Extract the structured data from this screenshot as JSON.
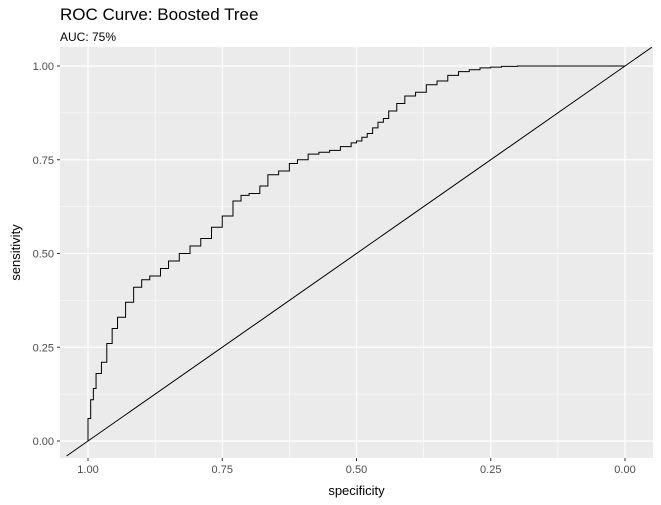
{
  "chart_data": {
    "type": "line",
    "title": "ROC Curve: Boosted Tree",
    "subtitle": "AUC: 75%",
    "xlabel": "specificity",
    "ylabel": "sensitivity",
    "x_reversed": true,
    "xlim": [
      1.0,
      0.0
    ],
    "ylim": [
      0.0,
      1.0
    ],
    "x_ticks": [
      1.0,
      0.75,
      0.5,
      0.25,
      0.0
    ],
    "x_tick_labels": [
      "1.00",
      "0.75",
      "0.50",
      "0.25",
      "0.00"
    ],
    "y_ticks": [
      0.0,
      0.25,
      0.5,
      0.75,
      1.0
    ],
    "y_tick_labels": [
      "0.00",
      "0.25",
      "0.50",
      "0.75",
      "1.00"
    ],
    "grid": true,
    "background": "#ebebeb",
    "grid_color": "#ffffff",
    "series": [
      {
        "color": "#000000",
        "x": [
          1.0,
          1.0,
          0.995,
          0.99,
          0.985,
          0.975,
          0.965,
          0.955,
          0.945,
          0.93,
          0.915,
          0.9,
          0.885,
          0.865,
          0.85,
          0.83,
          0.81,
          0.79,
          0.77,
          0.75,
          0.73,
          0.715,
          0.7,
          0.68,
          0.665,
          0.645,
          0.625,
          0.61,
          0.59,
          0.57,
          0.55,
          0.53,
          0.51,
          0.5,
          0.49,
          0.48,
          0.47,
          0.46,
          0.45,
          0.44,
          0.425,
          0.41,
          0.39,
          0.37,
          0.35,
          0.33,
          0.31,
          0.29,
          0.27,
          0.25,
          0.23,
          0.2,
          0.15,
          0.1,
          0.05,
          0.0
        ],
        "y": [
          0.0,
          0.06,
          0.11,
          0.14,
          0.18,
          0.21,
          0.26,
          0.3,
          0.33,
          0.37,
          0.41,
          0.43,
          0.44,
          0.46,
          0.48,
          0.5,
          0.52,
          0.54,
          0.57,
          0.6,
          0.64,
          0.655,
          0.66,
          0.68,
          0.71,
          0.72,
          0.74,
          0.75,
          0.765,
          0.77,
          0.775,
          0.785,
          0.795,
          0.8,
          0.81,
          0.82,
          0.835,
          0.85,
          0.86,
          0.88,
          0.9,
          0.92,
          0.93,
          0.95,
          0.96,
          0.975,
          0.985,
          0.99,
          0.995,
          0.997,
          0.999,
          1.0,
          1.0,
          1.0,
          1.0,
          1.0
        ]
      },
      {
        "color": "#000000",
        "x": [
          1.04,
          -0.05
        ],
        "y": [
          -0.04,
          1.05
        ]
      }
    ]
  }
}
